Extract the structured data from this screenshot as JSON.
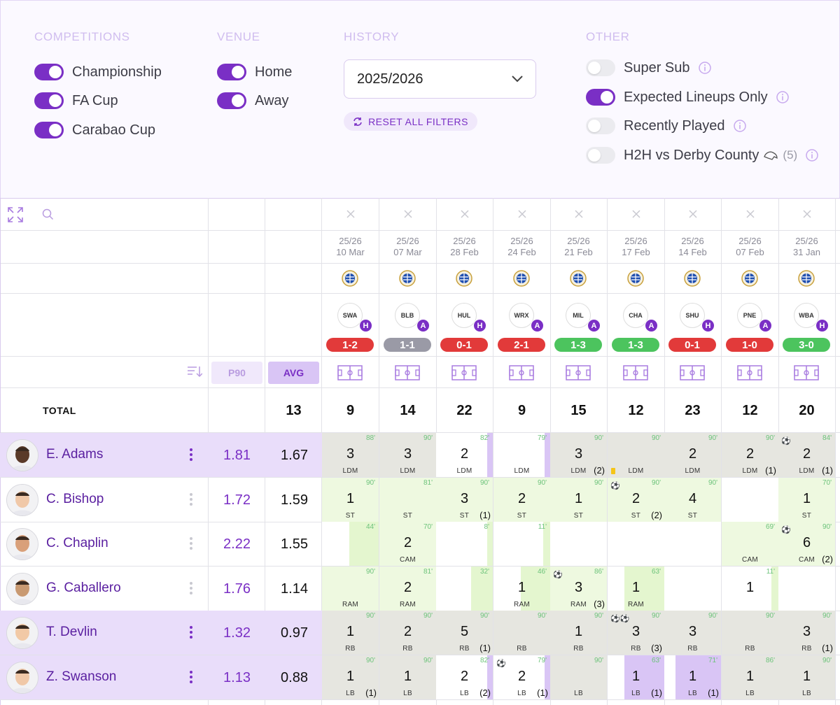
{
  "filters": {
    "competitions_title": "COMPETITIONS",
    "venue_title": "VENUE",
    "history_title": "HISTORY",
    "other_title": "OTHER",
    "competitions": [
      {
        "label": "Championship",
        "on": true
      },
      {
        "label": "FA Cup",
        "on": true
      },
      {
        "label": "Carabao Cup",
        "on": true
      }
    ],
    "venues": [
      {
        "label": "Home",
        "on": true
      },
      {
        "label": "Away",
        "on": true
      }
    ],
    "season": "2025/2026",
    "reset_label": "RESET ALL FILTERS",
    "other": [
      {
        "label": "Super Sub",
        "on": false
      },
      {
        "label": "Expected Lineups Only",
        "on": true
      },
      {
        "label": "Recently Played",
        "on": false
      },
      {
        "label": "H2H vs Derby County",
        "on": false,
        "count": "(5)"
      }
    ]
  },
  "table": {
    "p90_label": "P90",
    "avg_label": "AVG",
    "total_label": "TOTAL",
    "total_avg": "13",
    "colors": {
      "win": "#4cc45e",
      "loss": "#e23a3a",
      "draw": "#9a9aa6",
      "accent": "#7a2fc5"
    },
    "matches": [
      {
        "season": "25/26",
        "date": "10 Mar",
        "club": "SWA",
        "venue": "H",
        "score": "1-2",
        "result": "loss",
        "total": "9"
      },
      {
        "season": "25/26",
        "date": "07 Mar",
        "club": "BLB",
        "venue": "A",
        "score": "1-1",
        "result": "draw",
        "total": "14"
      },
      {
        "season": "25/26",
        "date": "28 Feb",
        "club": "HUL",
        "venue": "H",
        "score": "0-1",
        "result": "loss",
        "total": "22"
      },
      {
        "season": "25/26",
        "date": "24 Feb",
        "club": "WRX",
        "venue": "A",
        "score": "2-1",
        "result": "loss",
        "total": "9"
      },
      {
        "season": "25/26",
        "date": "21 Feb",
        "club": "MIL",
        "venue": "A",
        "score": "1-3",
        "result": "win",
        "total": "15"
      },
      {
        "season": "25/26",
        "date": "17 Feb",
        "club": "CHA",
        "venue": "A",
        "score": "1-3",
        "result": "win",
        "total": "12"
      },
      {
        "season": "25/26",
        "date": "14 Feb",
        "club": "SHU",
        "venue": "H",
        "score": "0-1",
        "result": "loss",
        "total": "23"
      },
      {
        "season": "25/26",
        "date": "07 Feb",
        "club": "PNE",
        "venue": "A",
        "score": "1-0",
        "result": "loss",
        "total": "12"
      },
      {
        "season": "25/26",
        "date": "31 Jan",
        "club": "WBA",
        "venue": "H",
        "score": "3-0",
        "result": "win",
        "total": "20"
      }
    ],
    "players": [
      {
        "name": "E. Adams",
        "p90": "1.81",
        "avg": "1.67",
        "highlight": true,
        "skin": "#5a3a28",
        "cells": [
          {
            "m": "88'",
            "p": "3",
            "pos": "LDM"
          },
          {
            "m": "90'",
            "p": "3",
            "pos": "LDM"
          },
          {
            "m": "82'",
            "p": "2",
            "pos": "LDM",
            "bar": 0.1
          },
          {
            "m": "79'",
            "p": "",
            "pos": "LDM",
            "bar": 0.1
          },
          {
            "m": "90'",
            "p": "3",
            "pos": "LDM",
            "b": "(2)"
          },
          {
            "m": "90'",
            "p": "",
            "pos": "LDM",
            "card": true
          },
          {
            "m": "90'",
            "p": "2",
            "pos": "LDM"
          },
          {
            "m": "90'",
            "p": "2",
            "pos": "LDM",
            "b": "(1)"
          },
          {
            "m": "84'",
            "p": "2",
            "pos": "LDM",
            "b": "(1)",
            "goal": "⚽"
          }
        ]
      },
      {
        "name": "C. Bishop",
        "p90": "1.72",
        "avg": "1.59",
        "highlight": false,
        "skin": "#f0c8a8",
        "cells": [
          {
            "m": "90'",
            "p": "1",
            "pos": "ST"
          },
          {
            "m": "81'",
            "p": "",
            "pos": "ST"
          },
          {
            "m": "90'",
            "p": "3",
            "pos": "ST",
            "b": "(1)"
          },
          {
            "m": "90'",
            "p": "2",
            "pos": "ST"
          },
          {
            "m": "90'",
            "p": "1",
            "pos": "ST"
          },
          {
            "m": "90'",
            "p": "2",
            "pos": "ST",
            "b": "(2)",
            "goal": "⚽"
          },
          {
            "m": "90'",
            "p": "4",
            "pos": "ST"
          },
          {
            "m": "",
            "p": "",
            "pos": "",
            "empty": true
          },
          {
            "m": "70'",
            "p": "1",
            "pos": "ST"
          }
        ]
      },
      {
        "name": "C. Chaplin",
        "p90": "2.22",
        "avg": "1.55",
        "highlight": false,
        "skin": "#d9a07a",
        "cells": [
          {
            "m": "44'",
            "p": "",
            "pos": "",
            "bar": 0.52
          },
          {
            "m": "70'",
            "p": "2",
            "pos": "CAM"
          },
          {
            "m": "8'",
            "p": "",
            "pos": "",
            "bar": 0.1
          },
          {
            "m": "11'",
            "p": "",
            "pos": "",
            "bar": 0.12
          },
          {
            "m": "",
            "p": "",
            "pos": "",
            "empty": true
          },
          {
            "m": "",
            "p": "",
            "pos": "",
            "empty": true
          },
          {
            "m": "",
            "p": "",
            "pos": "",
            "empty": true
          },
          {
            "m": "69'",
            "p": "",
            "pos": "CAM"
          },
          {
            "m": "90'",
            "p": "6",
            "pos": "CAM",
            "b": "(2)",
            "goal": "⚽"
          }
        ]
      },
      {
        "name": "G. Caballero",
        "p90": "1.76",
        "avg": "1.14",
        "highlight": false,
        "skin": "#c99a72",
        "cells": [
          {
            "m": "90'",
            "p": "",
            "pos": "RAM"
          },
          {
            "m": "81'",
            "p": "2",
            "pos": "RAM"
          },
          {
            "m": "32'",
            "p": "",
            "pos": "",
            "bar": 0.38
          },
          {
            "m": "46'",
            "p": "1",
            "pos": "RAM",
            "bar": 0.52
          },
          {
            "m": "86'",
            "p": "3",
            "pos": "RAM",
            "b": "(3)",
            "goal": "⚽"
          },
          {
            "m": "63'",
            "p": "1",
            "pos": "RAM",
            "bar": 0.7
          },
          {
            "m": "",
            "p": "",
            "pos": "",
            "empty": true
          },
          {
            "m": "11'",
            "p": "1",
            "pos": "",
            "bar": 0.12
          },
          {
            "m": "",
            "p": "",
            "pos": "",
            "empty": true
          }
        ]
      },
      {
        "name": "T. Devlin",
        "p90": "1.32",
        "avg": "0.97",
        "highlight": true,
        "skin": "#f2c9a6",
        "cells": [
          {
            "m": "90'",
            "p": "1",
            "pos": "RB"
          },
          {
            "m": "90'",
            "p": "2",
            "pos": "RB"
          },
          {
            "m": "90'",
            "p": "5",
            "pos": "RB",
            "b": "(1)"
          },
          {
            "m": "90'",
            "p": "",
            "pos": "RB"
          },
          {
            "m": "90'",
            "p": "1",
            "pos": "RB"
          },
          {
            "m": "90'",
            "p": "3",
            "pos": "RB",
            "b": "(3)",
            "goal": "⚽⚽"
          },
          {
            "m": "90'",
            "p": "3",
            "pos": "RB"
          },
          {
            "m": "90'",
            "p": "",
            "pos": "RB"
          },
          {
            "m": "90'",
            "p": "3",
            "pos": "RB",
            "b": "(1)"
          }
        ]
      },
      {
        "name": "Z. Swanson",
        "p90": "1.13",
        "avg": "0.88",
        "highlight": true,
        "skin": "#f0c8a8",
        "cells": [
          {
            "m": "90'",
            "p": "1",
            "pos": "LB",
            "b": "(1)"
          },
          {
            "m": "90'",
            "p": "1",
            "pos": "LB"
          },
          {
            "m": "82'",
            "p": "2",
            "pos": "LB",
            "b": "(2)",
            "bar": 0.1
          },
          {
            "m": "79'",
            "p": "2",
            "pos": "LB",
            "b": "(1)",
            "goal": "⚽",
            "bar": 0.1
          },
          {
            "m": "90'",
            "p": "",
            "pos": "LB"
          },
          {
            "m": "63'",
            "p": "1",
            "pos": "LB",
            "b": "(1)",
            "bar": 0.7
          },
          {
            "m": "71'",
            "p": "1",
            "pos": "LB",
            "b": "(1)",
            "bar": 0.8
          },
          {
            "m": "86'",
            "p": "1",
            "pos": "LB"
          },
          {
            "m": "90'",
            "p": "1",
            "pos": "LB"
          }
        ]
      }
    ]
  }
}
